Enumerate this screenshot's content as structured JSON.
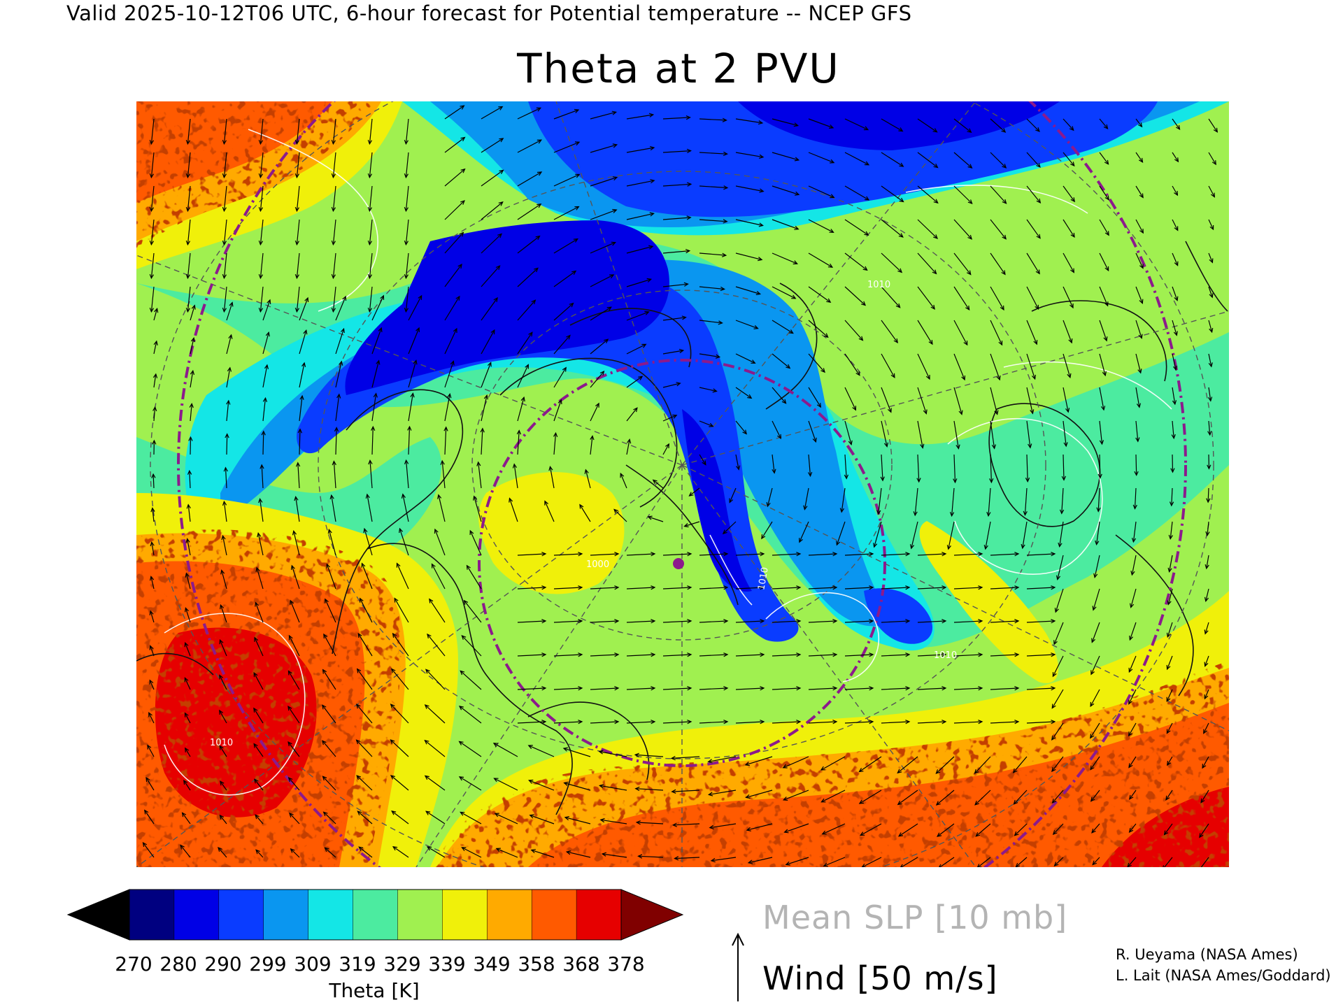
{
  "header": {
    "valid_line": "Valid 2025-10-12T06 UTC, 6-hour forecast for Potential temperature -- NCEP GFS",
    "title": "Theta at 2 PVU"
  },
  "colorbar": {
    "ticks": [
      "270",
      "280",
      "290",
      "299",
      "309",
      "319",
      "329",
      "339",
      "349",
      "358",
      "368",
      "378"
    ],
    "colors": [
      "#000000",
      "#000080",
      "#0000e6",
      "#0a3cff",
      "#0a96f0",
      "#14e6e6",
      "#4ceba0",
      "#a0f050",
      "#f0f00a",
      "#ffaa00",
      "#ff5a00",
      "#e60000",
      "#800000"
    ],
    "caption": "Theta [K]"
  },
  "legend": {
    "slp_label": "Mean SLP [10 mb]",
    "wind_label": "Wind [50 m/s]"
  },
  "credits": {
    "line1": "R. Ueyama (NASA Ames)",
    "line2": "L. Lait (NASA Ames/Goddard)"
  },
  "map": {
    "slp_contour_labels": [
      "1010",
      "1010",
      "1010",
      "1000",
      "1010"
    ]
  }
}
